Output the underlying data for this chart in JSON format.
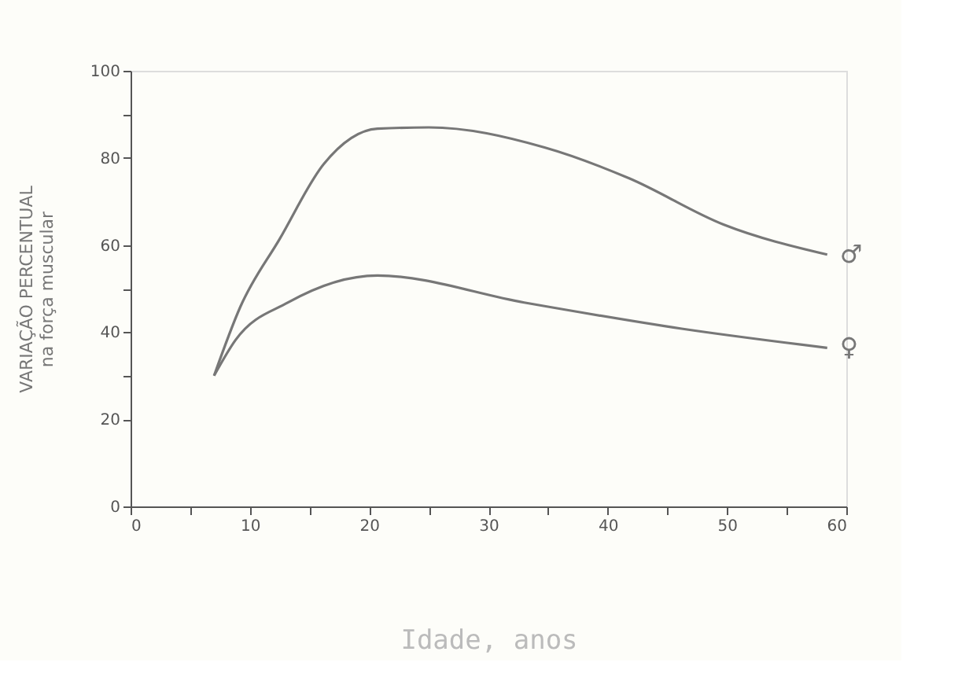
{
  "chart_data": {
    "type": "line",
    "xlabel": "Idade, anos",
    "ylabel": "VARIAÇÃO PERCENTUAL\nna força muscular",
    "xlim": [
      0,
      60
    ],
    "xticks": [
      0,
      {
        "value": 5,
        "label": null
      },
      10,
      {
        "value": 15,
        "label": null
      },
      20,
      {
        "value": 25,
        "label": null
      },
      30,
      {
        "value": 35,
        "label": null
      },
      40,
      {
        "value": 45,
        "label": null
      },
      50,
      {
        "value": 55,
        "label": null
      },
      60
    ],
    "ylim": [
      0,
      100
    ],
    "yticks": [
      0,
      20,
      {
        "value": 30,
        "label": null
      },
      40,
      {
        "value": 50,
        "label": null
      },
      60,
      80,
      {
        "value": 90,
        "label": null
      },
      100
    ],
    "grid": false,
    "legend": false,
    "marker": "none",
    "line_style": "solid",
    "series": [
      {
        "name": "♂",
        "color": "#777777",
        "x": [
          7.0,
          9.2,
          12.5,
          16.2,
          20.7,
          25,
          34.7,
          41.8,
          49.7,
          58.4
        ],
        "values": [
          30,
          45.8,
          61.4,
          78.6,
          86.7,
          87,
          82.4,
          75.3,
          64.7,
          57.8
        ]
      },
      {
        "name": "♀",
        "color": "#777777",
        "x": [
          7.0,
          8.8,
          13.2,
          20.7,
          33,
          46.2,
          58.4
        ],
        "values": [
          30,
          38.2,
          46.8,
          53,
          46.8,
          40.8,
          36.4
        ]
      }
    ]
  }
}
